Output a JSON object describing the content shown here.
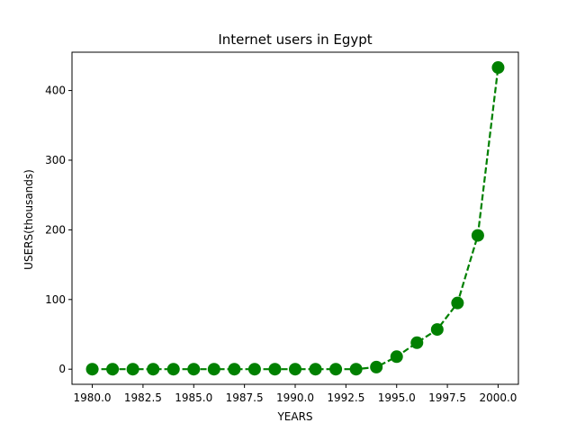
{
  "chart_data": {
    "type": "line",
    "title": "Internet users in Egypt",
    "xlabel": "YEARS",
    "ylabel": "USERS(thousands)",
    "xlim": [
      1979.0,
      2001.0
    ],
    "ylim": [
      -21.7,
      455.0
    ],
    "x_ticks": [
      1980.0,
      1982.5,
      1985.0,
      1987.5,
      1990.0,
      1992.5,
      1995.0,
      1997.5,
      2000.0
    ],
    "x_tick_labels": [
      "1980.0",
      "1982.5",
      "1985.0",
      "1987.5",
      "1990.0",
      "1992.5",
      "1995.0",
      "1997.5",
      "2000.0"
    ],
    "y_ticks": [
      0,
      100,
      200,
      300,
      400
    ],
    "y_tick_labels": [
      "0",
      "100",
      "200",
      "300",
      "400"
    ],
    "grid": false,
    "series": [
      {
        "color": "#008000",
        "line_style": "dashed",
        "marker": "circle",
        "x": [
          1980,
          1981,
          1982,
          1983,
          1984,
          1985,
          1986,
          1987,
          1988,
          1989,
          1990,
          1991,
          1992,
          1993,
          1994,
          1995,
          1996,
          1997,
          1998,
          1999,
          2000
        ],
        "values": [
          0,
          0,
          0,
          0,
          0,
          0,
          0,
          0,
          0,
          0,
          0,
          0,
          0,
          0,
          3,
          18,
          38,
          57,
          95,
          192,
          433
        ]
      }
    ]
  }
}
